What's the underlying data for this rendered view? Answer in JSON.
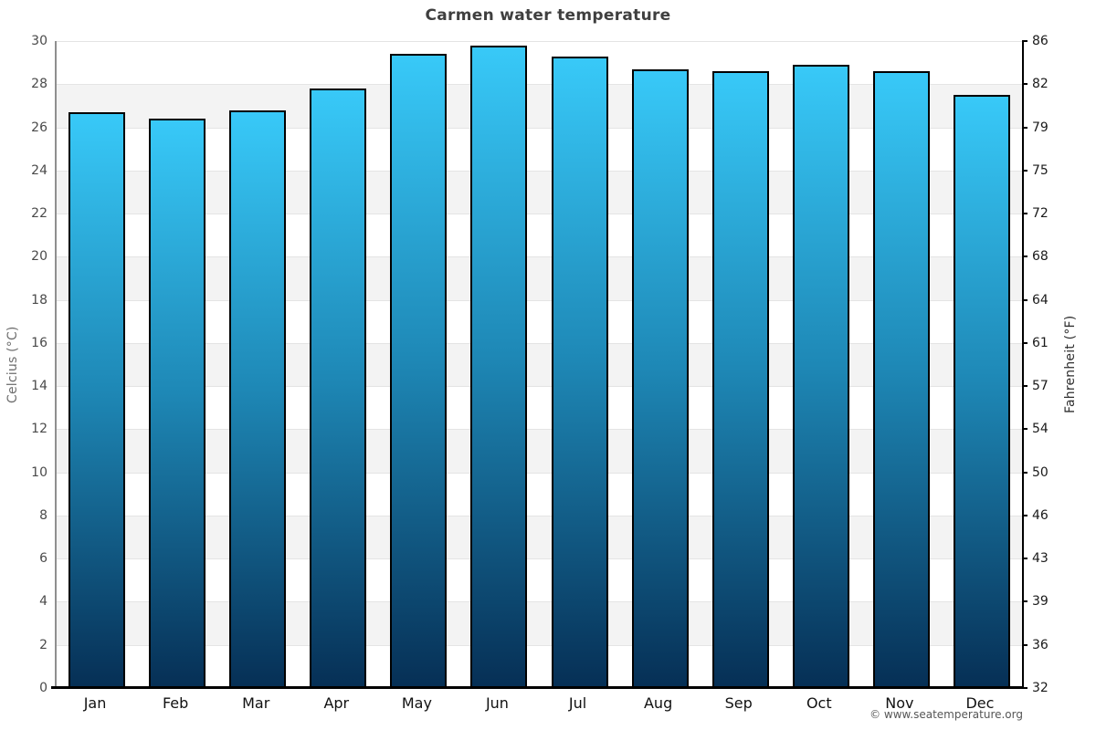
{
  "title": "Carmen water temperature",
  "footer": {
    "attribution": "© www.seatemperature.org"
  },
  "chart_data": {
    "type": "bar",
    "title": "Carmen water temperature",
    "categories": [
      "Jan",
      "Feb",
      "Mar",
      "Apr",
      "May",
      "Jun",
      "Jul",
      "Aug",
      "Sep",
      "Oct",
      "Nov",
      "Dec"
    ],
    "values": [
      26.7,
      26.4,
      26.8,
      27.8,
      29.4,
      29.8,
      29.3,
      28.7,
      28.6,
      28.9,
      28.6,
      27.5
    ],
    "ylim": [
      0,
      30
    ],
    "band_step_celsius": 2,
    "grid": "alternating horizontal bands every 2°C",
    "legend": "none",
    "axis_left": {
      "label": "Celcius (°C)",
      "ticks": [
        30,
        28,
        26,
        24,
        22,
        20,
        18,
        16,
        14,
        12,
        10,
        8,
        6,
        4,
        2,
        0
      ]
    },
    "axis_right": {
      "label": "Fahrenheit (°F)",
      "ticks": [
        86,
        82,
        79,
        75,
        72,
        68,
        64,
        61,
        57,
        54,
        50,
        46,
        43,
        39,
        36,
        32
      ]
    },
    "colors": {
      "bar_gradient_top": "#38c9f8",
      "bar_gradient_mid": "#1e88b6",
      "bar_gradient_bottom": "#062f55",
      "bar_border": "#000000",
      "band_white": "#ffffff",
      "band_gray": "#f3f3f3",
      "gridline": "#e4e4e4",
      "axis_left_line": "#8f8f8f",
      "axis_right_line": "#000000",
      "baseline": "#000000",
      "title_text": "#3f3f3f"
    }
  }
}
